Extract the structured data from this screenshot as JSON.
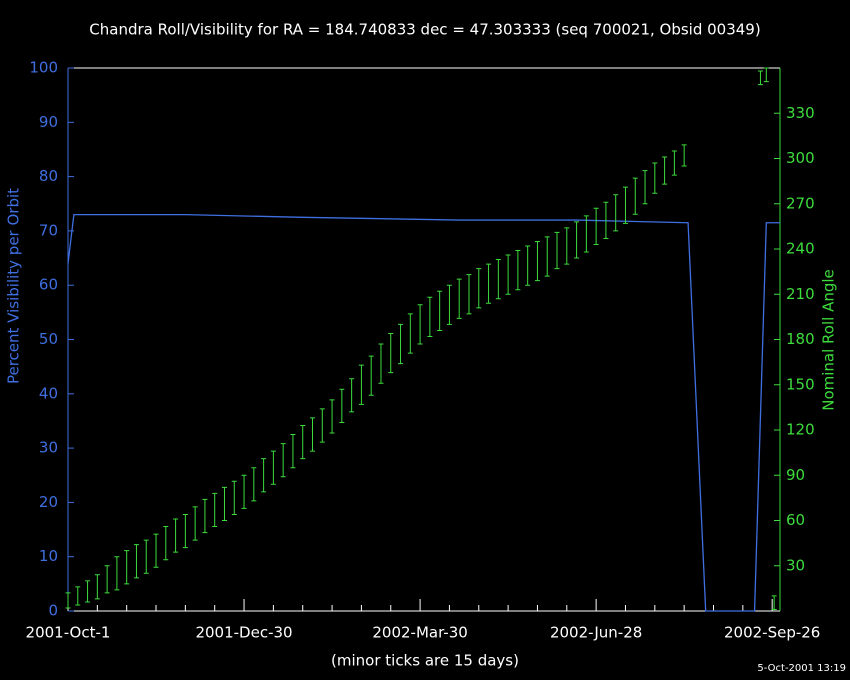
{
  "chart_data": {
    "type": "line",
    "title": "Chandra Roll/Visibility for RA = 184.740833 dec = 47.303333 (seq 700021, Obsid 00349)",
    "ylabel": "Percent Visibility per Orbit",
    "y2label": "Nominal Roll Angle",
    "xlabel": "(minor ticks are 15 days)",
    "timestamp": "5-Oct-2001 13:19",
    "xlim": [
      0,
      364
    ],
    "xticks": [
      {
        "value": 0,
        "label": "2001-Oct-1"
      },
      {
        "value": 90,
        "label": "2001-Dec-30"
      },
      {
        "value": 180,
        "label": "2002-Mar-30"
      },
      {
        "value": 270,
        "label": "2002-Jun-28"
      },
      {
        "value": 360,
        "label": "2002-Sep-26"
      }
    ],
    "xminorticks": [
      15,
      30,
      45,
      60,
      75,
      105,
      120,
      135,
      150,
      165,
      195,
      210,
      225,
      240,
      255,
      285,
      300,
      315,
      330,
      345
    ],
    "ylim": [
      0,
      100
    ],
    "yticks": [
      0,
      10,
      20,
      30,
      40,
      50,
      60,
      70,
      80,
      90,
      100
    ],
    "y2lim": [
      0,
      360
    ],
    "y2ticks": [
      30,
      60,
      90,
      120,
      150,
      180,
      210,
      240,
      270,
      300,
      330
    ],
    "series": [
      {
        "kind": "line",
        "axis": "y",
        "color": "#3f6fe0",
        "x": [
          0,
          3,
          60,
          120,
          200,
          260,
          317,
          326,
          351,
          357,
          364
        ],
        "values": [
          64,
          73,
          73,
          72.5,
          72,
          72,
          71.5,
          0,
          0,
          71.5,
          71.5
        ]
      },
      {
        "kind": "errorbar",
        "axis": "y2",
        "color": "#3ddc3d",
        "x": [
          0,
          5,
          10,
          15,
          20,
          25,
          30,
          35,
          40,
          45,
          50,
          55,
          60,
          65,
          70,
          75,
          80,
          85,
          90,
          95,
          100,
          105,
          110,
          115,
          120,
          125,
          130,
          135,
          140,
          145,
          150,
          155,
          160,
          165,
          170,
          175,
          180,
          185,
          190,
          195,
          200,
          205,
          210,
          215,
          220,
          225,
          230,
          235,
          240,
          245,
          250,
          255,
          260,
          265,
          270,
          275,
          280,
          285,
          290,
          295,
          300,
          305,
          310,
          315,
          354,
          357,
          361
        ],
        "low": [
          2,
          4,
          6,
          8,
          12,
          14,
          18,
          22,
          25,
          29,
          34,
          39,
          42,
          47,
          52,
          56,
          60,
          64,
          68,
          73,
          79,
          84,
          89,
          95,
          101,
          106,
          112,
          118,
          125,
          132,
          137,
          143,
          151,
          158,
          164,
          171,
          177,
          182,
          186,
          190,
          194,
          197,
          201,
          204,
          207,
          210,
          213,
          216,
          219,
          222,
          227,
          230,
          234,
          238,
          243,
          247,
          252,
          257,
          263,
          270,
          277,
          283,
          289,
          295,
          349,
          351,
          1
        ],
        "high": [
          12,
          16,
          20,
          24,
          30,
          36,
          40,
          44,
          47,
          51,
          56,
          61,
          64,
          69,
          74,
          78,
          82,
          86,
          90,
          95,
          101,
          106,
          111,
          117,
          123,
          128,
          134,
          140,
          147,
          154,
          163,
          169,
          177,
          184,
          190,
          197,
          203,
          208,
          212,
          216,
          220,
          223,
          227,
          230,
          233,
          236,
          239,
          242,
          245,
          248,
          251,
          254,
          258,
          262,
          267,
          271,
          276,
          281,
          287,
          292,
          297,
          301,
          305,
          309,
          358,
          360,
          10
        ]
      }
    ]
  }
}
